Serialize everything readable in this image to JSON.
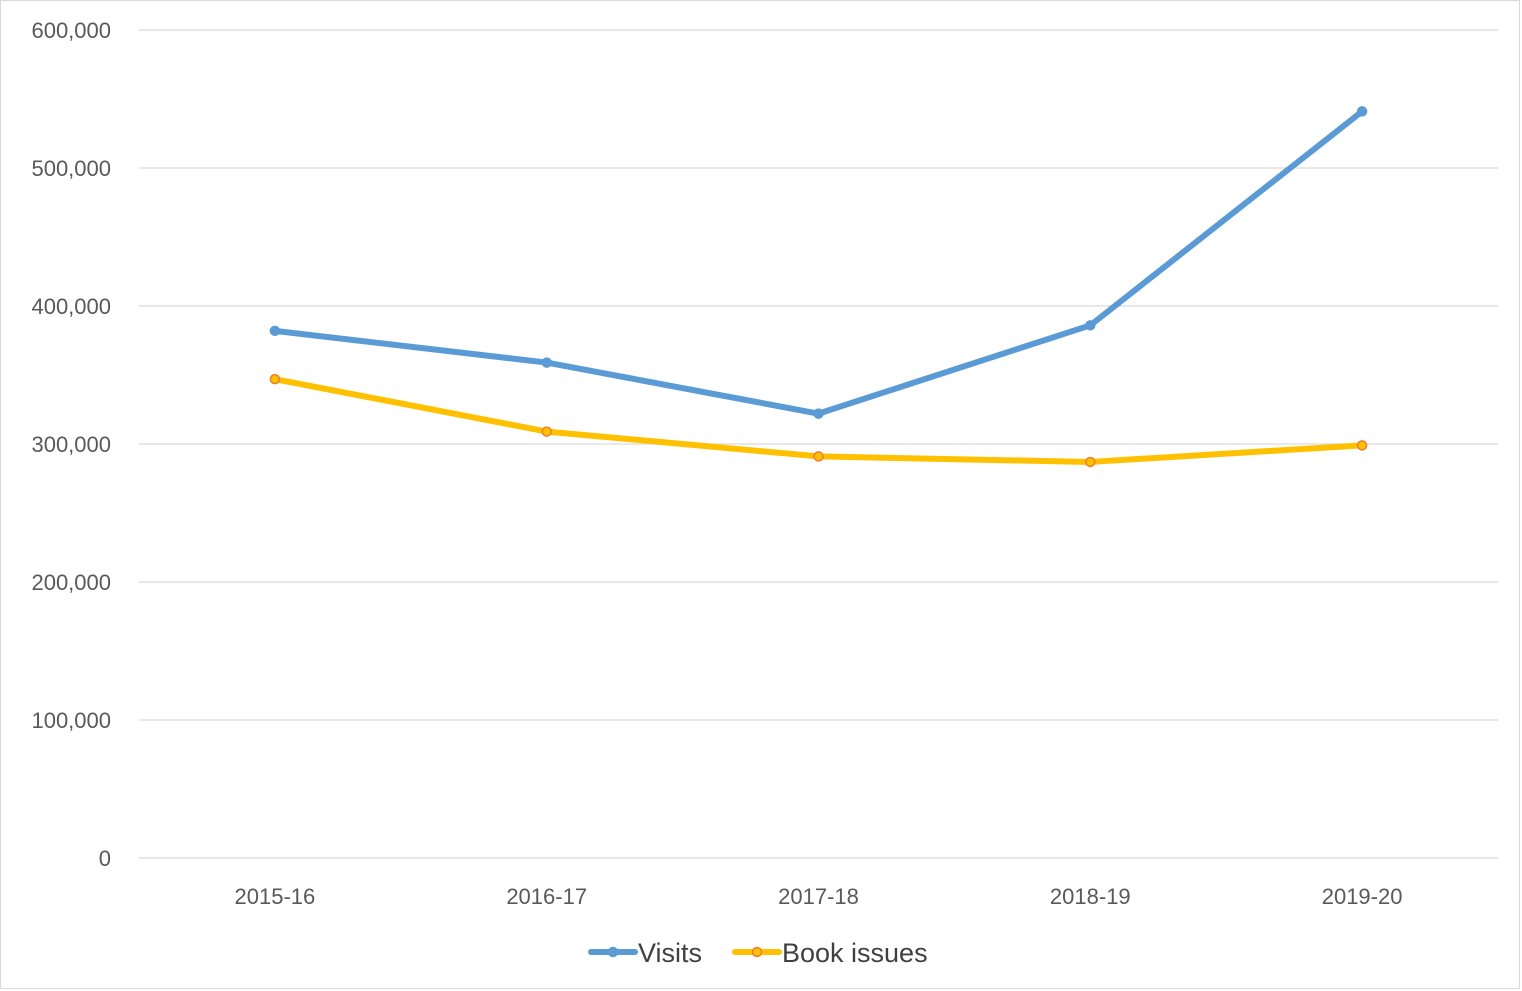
{
  "chart_data": {
    "type": "line",
    "title": "",
    "xlabel": "",
    "ylabel": "",
    "categories": [
      "2015-16",
      "2016-17",
      "2017-18",
      "2018-19",
      "2019-20"
    ],
    "ylim": [
      0,
      600000
    ],
    "yticks": [
      0,
      100000,
      200000,
      300000,
      400000,
      500000,
      600000
    ],
    "ytick_labels": [
      "0",
      "100,000",
      "200,000",
      "300,000",
      "400,000",
      "500,000",
      "600,000"
    ],
    "grid": "horizontal",
    "legend_position": "bottom",
    "series": [
      {
        "name": "Visits",
        "color": "#5b9bd5",
        "marker_fill": "#5b9bd5",
        "marker_stroke": "#5b9bd5",
        "values": [
          382000,
          359000,
          322000,
          386000,
          541000
        ]
      },
      {
        "name": "Book issues",
        "color": "#ffc000",
        "marker_fill": "#ffc000",
        "marker_stroke": "#ed7d31",
        "values": [
          347000,
          309000,
          291000,
          287000,
          299000
        ]
      }
    ]
  }
}
